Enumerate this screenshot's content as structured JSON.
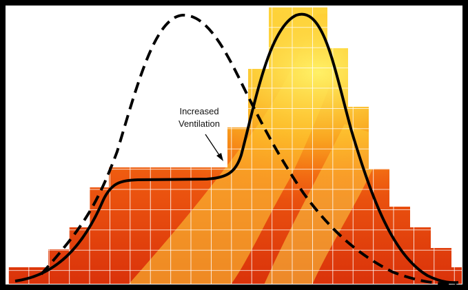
{
  "annotation": {
    "lines": [
      "Increased",
      "Ventilation"
    ]
  }
}
